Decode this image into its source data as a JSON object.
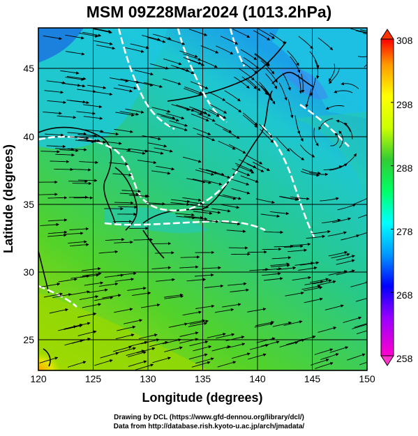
{
  "title": "MSM 09Z28Mar2024 (1013.2hPa)",
  "x_axis": {
    "label": "Longitude (degrees)",
    "ticks": [
      "120",
      "125",
      "130",
      "135",
      "140",
      "145",
      "150"
    ],
    "range": [
      120,
      150
    ]
  },
  "y_axis": {
    "label": "Latitude  (degrees)",
    "ticks": [
      "25",
      "30",
      "35",
      "40",
      "45"
    ],
    "range": [
      22.4,
      47.6
    ]
  },
  "colorbar": {
    "ticks": [
      "258",
      "268",
      "278",
      "288",
      "298",
      "308"
    ],
    "range": [
      258,
      308
    ],
    "colors": [
      "#ff00cc",
      "#9900ff",
      "#0000ff",
      "#0099ff",
      "#00ffff",
      "#00ff66",
      "#33cc33",
      "#ccff00",
      "#ffff00",
      "#ff9900",
      "#ff0000"
    ]
  },
  "credits": {
    "line1": "Drawing by DCL (https://www.gfd-dennou.org/library/dcl/)",
    "line2": "Data from http://database.rish.kyoto-u.ac.jp/arch/jmadata/"
  }
}
